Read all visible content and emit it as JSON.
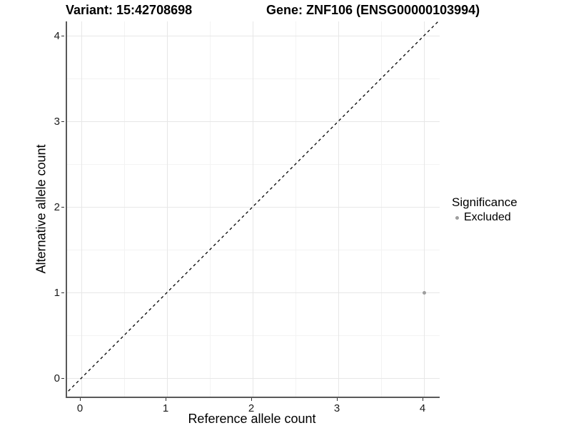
{
  "titles": {
    "variant": "Variant: 15:42708698",
    "gene": "Gene: ZNF106 (ENSG00000103994)"
  },
  "axes": {
    "x": {
      "label": "Reference allele count",
      "ticks": [
        "0",
        "1",
        "2",
        "3",
        "4"
      ]
    },
    "y": {
      "label": "Alternative allele count",
      "ticks": [
        "0",
        "1",
        "2",
        "3",
        "4"
      ]
    }
  },
  "legend": {
    "title": "Significance",
    "items": [
      {
        "label": "Excluded",
        "color": "#9e9e9e"
      }
    ]
  },
  "colors": {
    "grid_major": "#e7e7e7",
    "grid_minor": "#f3f3f3",
    "axis_line": "#595959",
    "tick_mark": "#333333",
    "point": "#9e9e9e",
    "identity_line": "#000000"
  },
  "chart_data": {
    "type": "scatter",
    "title": "Variant: 15:42708698 | Gene: ZNF106 (ENSG00000103994)",
    "xlabel": "Reference allele count",
    "ylabel": "Alternative allele count",
    "xlim": [
      -0.2,
      4.2
    ],
    "ylim": [
      -0.2,
      4.2
    ],
    "x_ticks": [
      0,
      1,
      2,
      3,
      4
    ],
    "y_ticks": [
      0,
      1,
      2,
      3,
      4
    ],
    "grid": "major+minor",
    "legend_position": "right",
    "series": [
      {
        "name": "Excluded",
        "color": "#9e9e9e",
        "points": [
          {
            "x": 4,
            "y": 1
          }
        ]
      }
    ],
    "reference_line": {
      "type": "identity",
      "style": "dashed",
      "from": [
        -0.2,
        -0.2
      ],
      "to": [
        4.2,
        4.2
      ]
    }
  }
}
